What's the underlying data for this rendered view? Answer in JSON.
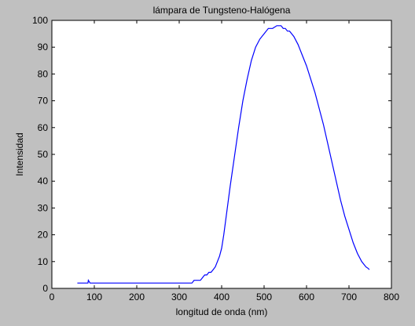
{
  "chart_data": {
    "type": "line",
    "title": "lámpara de Tungsteno-Halógena",
    "xlabel": "longitud de onda (nm)",
    "ylabel": "Intensidad",
    "xlim": [
      0,
      800
    ],
    "ylim": [
      0,
      100
    ],
    "xticks": [
      0,
      100,
      200,
      300,
      400,
      500,
      600,
      700,
      800
    ],
    "yticks": [
      0,
      10,
      20,
      30,
      40,
      50,
      60,
      70,
      80,
      90,
      100
    ],
    "grid": false,
    "legend": "none",
    "series": [
      {
        "color": "#0000ff",
        "x": [
          60,
          85,
          86,
          90,
          95,
          150,
          200,
          250,
          300,
          330,
          335,
          340,
          350,
          355,
          360,
          365,
          370,
          375,
          380,
          385,
          390,
          395,
          400,
          405,
          410,
          415,
          420,
          430,
          440,
          450,
          460,
          470,
          480,
          490,
          500,
          510,
          520,
          530,
          535,
          540,
          545,
          550,
          555,
          560,
          565,
          570,
          580,
          590,
          600,
          610,
          620,
          630,
          640,
          650,
          660,
          670,
          680,
          690,
          700,
          710,
          720,
          730,
          740,
          745,
          748
        ],
        "y": [
          2,
          2,
          3,
          2,
          2,
          2,
          2,
          2,
          2,
          2,
          3,
          3,
          3,
          4,
          5,
          5,
          6,
          6,
          7,
          8,
          10,
          12,
          15,
          20,
          26,
          32,
          38,
          49,
          60,
          70,
          78,
          85,
          90,
          93,
          95,
          97,
          97,
          98,
          98,
          98,
          97,
          97,
          96,
          96,
          95,
          94,
          91,
          87,
          83,
          78,
          73,
          67,
          61,
          54,
          47,
          40,
          33,
          27,
          22,
          17,
          13,
          10,
          8,
          7.5,
          7
        ]
      }
    ]
  }
}
